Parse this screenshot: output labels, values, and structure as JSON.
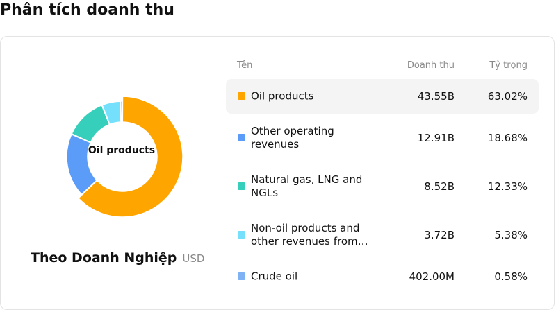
{
  "page": {
    "title": "Phân tích doanh thu"
  },
  "donut": {
    "center_label": "Oil products"
  },
  "segment": {
    "title": "Theo Doanh Nghiệp",
    "unit": "USD"
  },
  "table": {
    "headers": {
      "name": "Tên",
      "revenue": "Doanh thu",
      "share": "Tỷ trọng"
    },
    "rows": [
      {
        "name": "Oil products",
        "revenue": "43.55B",
        "share": "63.02%",
        "color": "#ffa500",
        "active": true
      },
      {
        "name": "Other operating revenues",
        "revenue": "12.91B",
        "share": "18.68%",
        "color": "#5b9cf8",
        "active": false
      },
      {
        "name": "Natural gas, LNG and NGLs",
        "revenue": "8.52B",
        "share": "12.33%",
        "color": "#35cfbc",
        "active": false
      },
      {
        "name": "Non-oil products and other revenues from…",
        "revenue": "3.72B",
        "share": "5.38%",
        "color": "#74e0fb",
        "active": false
      },
      {
        "name": "Crude oil",
        "revenue": "402.00M",
        "share": "0.58%",
        "color": "#7eb2f5",
        "active": false
      }
    ]
  },
  "chart_data": {
    "type": "pie",
    "title": "Phân tích doanh thu",
    "subtitle": "Theo Doanh Nghiệp",
    "unit": "USD",
    "categories": [
      "Oil products",
      "Other operating revenues",
      "Natural gas, LNG and NGLs",
      "Non-oil products and other revenues from…",
      "Crude oil"
    ],
    "values": [
      43.55,
      12.91,
      8.52,
      3.72,
      0.402
    ],
    "value_labels": [
      "43.55B",
      "12.91B",
      "8.52B",
      "3.72B",
      "402.00M"
    ],
    "shares": [
      63.02,
      18.68,
      12.33,
      5.38,
      0.58
    ],
    "colors": [
      "#ffa500",
      "#5b9cf8",
      "#35cfbc",
      "#74e0fb",
      "#7eb2f5"
    ],
    "donut": true,
    "highlighted": "Oil products"
  }
}
